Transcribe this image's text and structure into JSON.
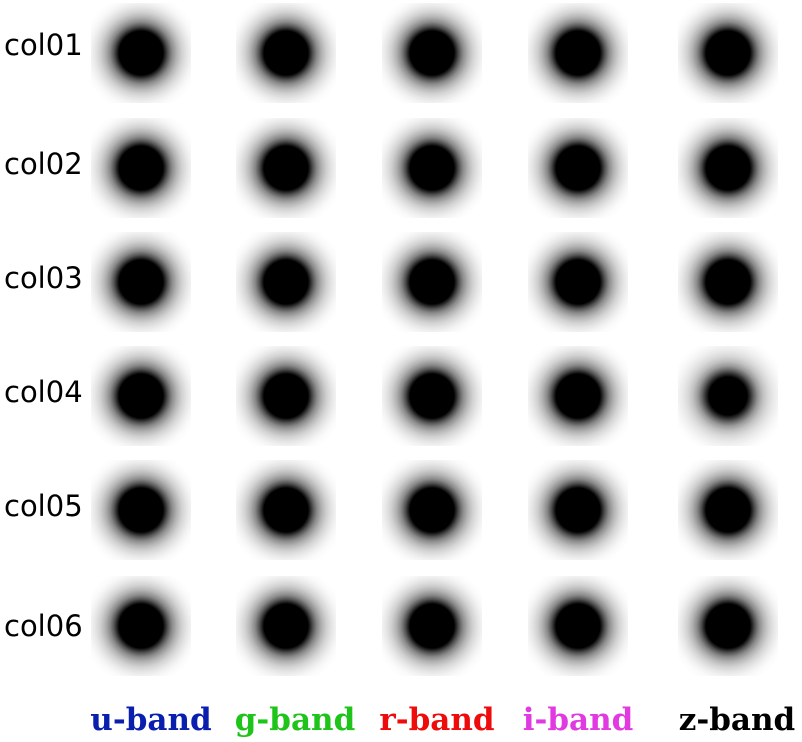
{
  "rows": [
    "col01",
    "col02",
    "col03",
    "col04",
    "col05",
    "col06"
  ],
  "bands": [
    {
      "label": "u-band",
      "color": "#0b1fae"
    },
    {
      "label": "g-band",
      "color": "#1fc41a"
    },
    {
      "label": "r-band",
      "color": "#ee0b0b"
    },
    {
      "label": "i-band",
      "color": "#e03ae0"
    },
    {
      "label": "z-band",
      "color": "#000000"
    }
  ]
}
